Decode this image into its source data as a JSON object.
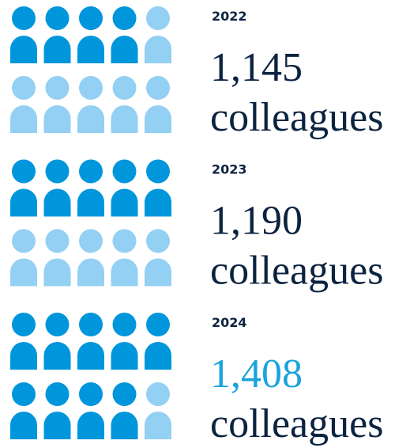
{
  "items": [
    {
      "year": "2022",
      "value": "1,145",
      "unit": "colleagues",
      "icons_filled": 4,
      "icons_total": 10,
      "highlight": false
    },
    {
      "year": "2023",
      "value": "1,190",
      "unit": "colleagues",
      "icons_filled": 5,
      "icons_total": 10,
      "highlight": false
    },
    {
      "year": "2024",
      "value": "1,408",
      "unit": "colleagues",
      "icons_filled": 9,
      "icons_total": 10,
      "highlight": true
    }
  ],
  "colors": {
    "filled": "#0096db",
    "empty": "#93d0f3",
    "text": "#0c2340",
    "highlight": "#1ba3dc"
  }
}
